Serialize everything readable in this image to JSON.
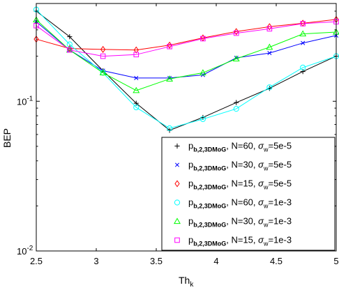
{
  "chart_data": {
    "type": "line",
    "xlabel_main": "Th",
    "xlabel_sub": "k",
    "ylabel": "BEP",
    "yscale": "log",
    "xlim": [
      2.5,
      5
    ],
    "ylim": [
      0.01,
      0.45
    ],
    "x_ticks": [
      {
        "value": 2.5,
        "label": "2.5"
      },
      {
        "value": 3,
        "label": "3"
      },
      {
        "value": 3.5,
        "label": "3.5"
      },
      {
        "value": 4,
        "label": "4"
      },
      {
        "value": 4.5,
        "label": "4.5"
      },
      {
        "value": 5,
        "label": "5"
      }
    ],
    "y_ticks": [
      {
        "value": 0.1,
        "base": "10",
        "exp": "-1"
      },
      {
        "value": 0.01,
        "base": "10",
        "exp": "-2"
      }
    ],
    "grid": false,
    "legend_position": "bottom-right",
    "x": [
      2.5,
      2.778,
      3.056,
      3.333,
      3.611,
      3.889,
      4.167,
      4.444,
      4.722,
      5.0
    ],
    "series": [
      {
        "label_main": "p",
        "label_sub": "b,2,3DMoG",
        "label_rest": ", N=60, ",
        "sigma": "σ",
        "sigma_sub": "w",
        "label_value": "=5e-5",
        "color": "#000000",
        "marker": "plus",
        "values": [
          0.4,
          0.27,
          0.16,
          0.097,
          0.064,
          0.078,
          0.098,
          0.122,
          0.158,
          0.2
        ]
      },
      {
        "label_main": "p",
        "label_sub": "b,2,3DMoG",
        "label_rest": ", N=30, ",
        "sigma": "σ",
        "sigma_sub": "w",
        "label_value": "=5e-5",
        "color": "#0000ff",
        "marker": "x",
        "values": [
          0.34,
          0.22,
          0.16,
          0.143,
          0.143,
          0.15,
          0.195,
          0.21,
          0.245,
          0.275
        ]
      },
      {
        "label_main": "p",
        "label_sub": "b,2,3DMoG",
        "label_rest": ", N=15, ",
        "sigma": "σ",
        "sigma_sub": "w",
        "label_value": "=5e-5",
        "color": "#ff0000",
        "marker": "diamond",
        "values": [
          0.26,
          0.225,
          0.222,
          0.22,
          0.237,
          0.265,
          0.292,
          0.315,
          0.332,
          0.352
        ]
      },
      {
        "label_main": "p",
        "label_sub": "b,2,3DMoG",
        "label_rest": ", N=60, ",
        "sigma": "σ",
        "sigma_sub": "w",
        "label_value": "=1e-3",
        "color": "#00ffff",
        "marker": "circle",
        "values": [
          0.41,
          0.24,
          0.155,
          0.091,
          0.066,
          0.076,
          0.089,
          0.124,
          0.168,
          0.2
        ]
      },
      {
        "label_main": "p",
        "label_sub": "b,2,3DMoG",
        "label_rest": ", N=30, ",
        "sigma": "σ",
        "sigma_sub": "w",
        "label_value": "=1e-3",
        "color": "#00ff00",
        "marker": "triangle",
        "values": [
          0.35,
          0.22,
          0.155,
          0.118,
          0.141,
          0.155,
          0.192,
          0.23,
          0.282,
          0.29
        ]
      },
      {
        "label_main": "p",
        "label_sub": "b,2,3DMoG",
        "label_rest": ", N=15, ",
        "sigma": "σ",
        "sigma_sub": "w",
        "label_value": "=1e-3",
        "color": "#ff00ff",
        "marker": "square",
        "values": [
          0.32,
          0.22,
          0.2,
          0.205,
          0.232,
          0.262,
          0.285,
          0.305,
          0.33,
          0.34
        ]
      }
    ]
  }
}
